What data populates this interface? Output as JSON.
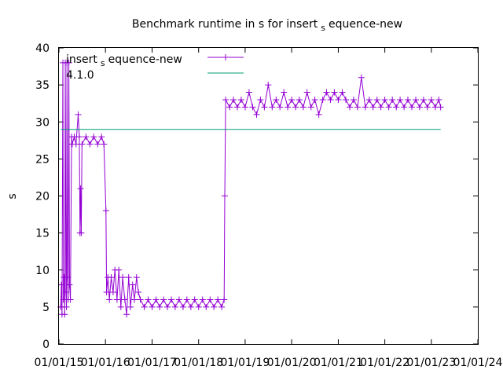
{
  "chart_data": {
    "type": "line",
    "title_main": "Benchmark runtime in s for insert",
    "title_sub": "s",
    "title_rest": "equence-new",
    "ylabel": "s",
    "xlabel": "",
    "ylim": [
      0,
      40
    ],
    "xlim": [
      "2015-01-01",
      "2024-01-01"
    ],
    "y_ticks": [
      "0",
      "5",
      "10",
      "15",
      "20",
      "25",
      "30",
      "35",
      "40"
    ],
    "x_ticks": [
      "01/01/15",
      "01/01/16",
      "01/01/17",
      "01/01/18",
      "01/01/19",
      "01/01/20",
      "01/01/21",
      "01/01/22",
      "01/01/23",
      "01/01/24"
    ],
    "grid": false,
    "legend_position": "top-left",
    "series": [
      {
        "name_main": "insert",
        "name_sub": "s",
        "name_rest": "equence-new",
        "color": "#9400d3",
        "marker": "plus",
        "points": [
          [
            "2015-01-15",
            5
          ],
          [
            "2015-01-20",
            8
          ],
          [
            "2015-01-25",
            4
          ],
          [
            "2015-02-01",
            38
          ],
          [
            "2015-02-05",
            6
          ],
          [
            "2015-02-10",
            9
          ],
          [
            "2015-02-15",
            4
          ],
          [
            "2015-02-20",
            38
          ],
          [
            "2015-02-25",
            7
          ],
          [
            "2015-03-01",
            5
          ],
          [
            "2015-03-05",
            38
          ],
          [
            "2015-03-10",
            9
          ],
          [
            "2015-03-15",
            6
          ],
          [
            "2015-03-20",
            38
          ],
          [
            "2015-03-25",
            8
          ],
          [
            "2015-04-01",
            6
          ],
          [
            "2015-04-10",
            28
          ],
          [
            "2015-04-15",
            27
          ],
          [
            "2015-05-01",
            28
          ],
          [
            "2015-05-15",
            27
          ],
          [
            "2015-06-01",
            31
          ],
          [
            "2015-06-10",
            28
          ],
          [
            "2015-06-15",
            15
          ],
          [
            "2015-06-20",
            21
          ],
          [
            "2015-06-25",
            15
          ],
          [
            "2015-07-01",
            27
          ],
          [
            "2015-08-01",
            28
          ],
          [
            "2015-09-01",
            27
          ],
          [
            "2015-10-01",
            28
          ],
          [
            "2015-11-01",
            27
          ],
          [
            "2015-12-01",
            28
          ],
          [
            "2015-12-20",
            27
          ],
          [
            "2016-01-05",
            18
          ],
          [
            "2016-01-10",
            7
          ],
          [
            "2016-01-20",
            9
          ],
          [
            "2016-02-01",
            6
          ],
          [
            "2016-02-15",
            9
          ],
          [
            "2016-03-01",
            7
          ],
          [
            "2016-03-15",
            10
          ],
          [
            "2016-04-01",
            6
          ],
          [
            "2016-04-15",
            10
          ],
          [
            "2016-05-01",
            5
          ],
          [
            "2016-05-15",
            9
          ],
          [
            "2016-06-01",
            6
          ],
          [
            "2016-06-15",
            4
          ],
          [
            "2016-07-01",
            9
          ],
          [
            "2016-07-15",
            5
          ],
          [
            "2016-08-01",
            8
          ],
          [
            "2016-08-15",
            6
          ],
          [
            "2016-09-01",
            9
          ],
          [
            "2016-09-15",
            7
          ],
          [
            "2016-10-01",
            6
          ],
          [
            "2016-11-01",
            5
          ],
          [
            "2016-12-01",
            6
          ],
          [
            "2017-01-01",
            5
          ],
          [
            "2017-02-01",
            6
          ],
          [
            "2017-03-01",
            5
          ],
          [
            "2017-04-01",
            6
          ],
          [
            "2017-05-01",
            5
          ],
          [
            "2017-06-01",
            6
          ],
          [
            "2017-07-01",
            5
          ],
          [
            "2017-08-01",
            6
          ],
          [
            "2017-09-01",
            5
          ],
          [
            "2017-10-01",
            6
          ],
          [
            "2017-11-01",
            5
          ],
          [
            "2017-12-01",
            6
          ],
          [
            "2018-01-01",
            5
          ],
          [
            "2018-02-01",
            6
          ],
          [
            "2018-03-01",
            5
          ],
          [
            "2018-04-01",
            6
          ],
          [
            "2018-05-01",
            5
          ],
          [
            "2018-06-01",
            6
          ],
          [
            "2018-07-01",
            5
          ],
          [
            "2018-07-20",
            6
          ],
          [
            "2018-07-25",
            20
          ],
          [
            "2018-08-01",
            33
          ],
          [
            "2018-09-01",
            32
          ],
          [
            "2018-10-01",
            33
          ],
          [
            "2018-11-01",
            32
          ],
          [
            "2018-12-01",
            33
          ],
          [
            "2019-01-01",
            32
          ],
          [
            "2019-02-01",
            34
          ],
          [
            "2019-03-01",
            32
          ],
          [
            "2019-04-01",
            31
          ],
          [
            "2019-05-01",
            33
          ],
          [
            "2019-06-01",
            32
          ],
          [
            "2019-07-01",
            35
          ],
          [
            "2019-08-01",
            32
          ],
          [
            "2019-09-01",
            33
          ],
          [
            "2019-10-01",
            32
          ],
          [
            "2019-11-01",
            34
          ],
          [
            "2019-12-01",
            32
          ],
          [
            "2020-01-01",
            33
          ],
          [
            "2020-02-01",
            32
          ],
          [
            "2020-03-01",
            33
          ],
          [
            "2020-04-01",
            32
          ],
          [
            "2020-05-01",
            34
          ],
          [
            "2020-06-01",
            32
          ],
          [
            "2020-07-01",
            33
          ],
          [
            "2020-08-01",
            31
          ],
          [
            "2020-09-01",
            33
          ],
          [
            "2020-10-01",
            34
          ],
          [
            "2020-11-01",
            33
          ],
          [
            "2020-12-01",
            34
          ],
          [
            "2021-01-01",
            33
          ],
          [
            "2021-02-01",
            34
          ],
          [
            "2021-03-01",
            33
          ],
          [
            "2021-04-01",
            32
          ],
          [
            "2021-05-01",
            33
          ],
          [
            "2021-06-01",
            32
          ],
          [
            "2021-07-01",
            36
          ],
          [
            "2021-08-01",
            32
          ],
          [
            "2021-09-01",
            33
          ],
          [
            "2021-10-01",
            32
          ],
          [
            "2021-11-01",
            33
          ],
          [
            "2021-12-01",
            32
          ],
          [
            "2022-01-01",
            33
          ],
          [
            "2022-02-01",
            32
          ],
          [
            "2022-03-01",
            33
          ],
          [
            "2022-04-01",
            32
          ],
          [
            "2022-05-01",
            33
          ],
          [
            "2022-06-01",
            32
          ],
          [
            "2022-07-01",
            33
          ],
          [
            "2022-08-01",
            32
          ],
          [
            "2022-09-01",
            33
          ],
          [
            "2022-10-01",
            32
          ],
          [
            "2022-11-01",
            33
          ],
          [
            "2022-12-01",
            32
          ],
          [
            "2023-01-01",
            33
          ],
          [
            "2023-02-01",
            32
          ],
          [
            "2023-03-01",
            33
          ],
          [
            "2023-03-15",
            32
          ]
        ]
      },
      {
        "name": "4.1.0",
        "color": "#009e73",
        "marker": "none",
        "points": [
          [
            "2015-01-15",
            29
          ],
          [
            "2023-03-15",
            29
          ]
        ]
      }
    ]
  }
}
